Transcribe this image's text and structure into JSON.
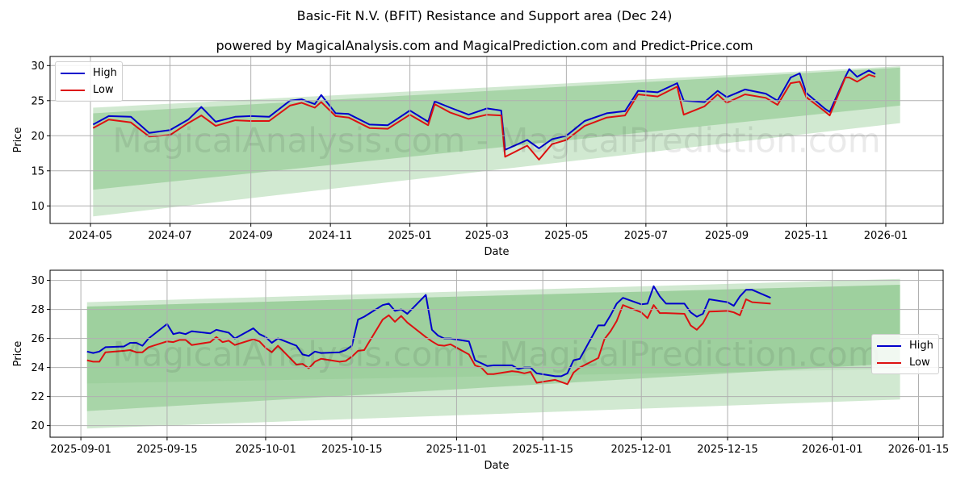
{
  "title": "Basic-Fit N.V. (BFIT) Resistance and Support area (Dec 24)",
  "subtitle": "powered by MagicalAnalysis.com and MagicalPrediction.com and Predict-Price.com",
  "watermark": "MagicalAnalysis.com - MagicalPrediction.com",
  "colors": {
    "high": "#0000cc",
    "low": "#dd1111",
    "band_dark": "#7cbf7c",
    "band_light": "#b5dcb5"
  },
  "chart_data": [
    {
      "type": "line",
      "title": "",
      "xlabel": "Date",
      "ylabel": "Price",
      "ylim": [
        7.5,
        31.3
      ],
      "yticks": [
        10,
        15,
        20,
        25,
        30
      ],
      "xticks": [
        "2024-05",
        "2024-07",
        "2024-09",
        "2024-11",
        "2025-01",
        "2025-03",
        "2025-05",
        "2025-07",
        "2025-09",
        "2025-11",
        "2026-01"
      ],
      "legend": {
        "position": "upper left",
        "entries": [
          "High",
          "Low"
        ]
      },
      "grid": true,
      "bands": {
        "x_start": "2024-05-03",
        "x_end": "2026-01-12",
        "outer": {
          "start": [
            8.5,
            24.0
          ],
          "end": [
            21.8,
            29.9
          ]
        },
        "inner": {
          "start": [
            12.3,
            23.2
          ],
          "end": [
            24.3,
            29.7
          ]
        }
      },
      "series": [
        {
          "name": "High",
          "x": [
            "2024-05-03",
            "2024-05-15",
            "2024-06-01",
            "2024-06-15",
            "2024-07-01",
            "2024-07-15",
            "2024-07-25",
            "2024-08-05",
            "2024-08-20",
            "2024-09-01",
            "2024-09-15",
            "2024-10-01",
            "2024-10-10",
            "2024-10-20",
            "2024-10-25",
            "2024-11-05",
            "2024-11-15",
            "2024-12-01",
            "2024-12-15",
            "2025-01-01",
            "2025-01-15",
            "2025-01-20",
            "2025-02-01",
            "2025-02-15",
            "2025-03-01",
            "2025-03-12",
            "2025-03-15",
            "2025-04-01",
            "2025-04-10",
            "2025-04-20",
            "2025-05-01",
            "2025-05-15",
            "2025-06-01",
            "2025-06-15",
            "2025-06-25",
            "2025-07-10",
            "2025-07-25",
            "2025-07-30",
            "2025-08-15",
            "2025-08-25",
            "2025-09-01",
            "2025-09-15",
            "2025-10-01",
            "2025-10-10",
            "2025-10-20",
            "2025-10-27",
            "2025-11-01",
            "2025-11-15",
            "2025-11-19",
            "2025-12-01",
            "2025-12-04",
            "2025-12-10",
            "2025-12-19",
            "2025-12-24"
          ],
          "values": [
            21.6,
            22.8,
            22.7,
            20.4,
            20.8,
            22.3,
            24.1,
            22.0,
            22.7,
            22.8,
            22.7,
            25.0,
            25.2,
            24.5,
            25.8,
            23.2,
            23.1,
            21.6,
            21.5,
            23.6,
            22.0,
            24.9,
            24.0,
            23.0,
            23.9,
            23.6,
            18.0,
            19.4,
            18.2,
            19.5,
            20.0,
            22.1,
            23.2,
            23.5,
            26.4,
            26.2,
            27.5,
            25.0,
            24.8,
            26.4,
            25.5,
            26.6,
            26.0,
            25.0,
            28.3,
            28.9,
            26.1,
            23.9,
            23.4,
            28.4,
            29.5,
            28.4,
            29.3,
            28.8
          ]
        },
        {
          "name": "Low",
          "x": [
            "2024-05-03",
            "2024-05-15",
            "2024-06-01",
            "2024-06-15",
            "2024-07-01",
            "2024-07-15",
            "2024-07-25",
            "2024-08-05",
            "2024-08-20",
            "2024-09-01",
            "2024-09-15",
            "2024-10-01",
            "2024-10-10",
            "2024-10-20",
            "2024-10-25",
            "2024-11-05",
            "2024-11-15",
            "2024-12-01",
            "2024-12-15",
            "2025-01-01",
            "2025-01-15",
            "2025-01-20",
            "2025-02-01",
            "2025-02-15",
            "2025-03-01",
            "2025-03-12",
            "2025-03-15",
            "2025-04-01",
            "2025-04-10",
            "2025-04-20",
            "2025-05-01",
            "2025-05-15",
            "2025-06-01",
            "2025-06-15",
            "2025-06-25",
            "2025-07-10",
            "2025-07-25",
            "2025-07-30",
            "2025-08-15",
            "2025-08-25",
            "2025-09-01",
            "2025-09-15",
            "2025-10-01",
            "2025-10-10",
            "2025-10-20",
            "2025-10-27",
            "2025-11-01",
            "2025-11-15",
            "2025-11-19",
            "2025-12-01",
            "2025-12-04",
            "2025-12-10",
            "2025-12-19",
            "2025-12-24"
          ],
          "values": [
            21.1,
            22.3,
            21.9,
            19.9,
            20.1,
            21.8,
            22.9,
            21.4,
            22.2,
            22.1,
            22.1,
            24.3,
            24.7,
            24.0,
            24.8,
            22.8,
            22.6,
            21.1,
            21.0,
            23.0,
            21.5,
            24.5,
            23.3,
            22.4,
            23.0,
            22.9,
            17.0,
            18.6,
            16.6,
            18.8,
            19.4,
            21.4,
            22.6,
            22.9,
            25.9,
            25.6,
            27.0,
            23.0,
            24.2,
            25.9,
            24.7,
            25.9,
            25.4,
            24.4,
            27.5,
            27.7,
            25.5,
            23.5,
            22.9,
            28.3,
            28.3,
            27.7,
            28.7,
            28.4
          ]
        }
      ]
    },
    {
      "type": "line",
      "title": "",
      "xlabel": "Date",
      "ylabel": "Price",
      "ylim": [
        19.2,
        30.7
      ],
      "yticks": [
        20,
        22,
        24,
        26,
        28,
        30
      ],
      "xticks": [
        "2025-09-01",
        "2025-09-15",
        "2025-10-01",
        "2025-10-15",
        "2025-11-01",
        "2025-11-15",
        "2025-12-01",
        "2025-12-15",
        "2026-01-01",
        "2026-01-15"
      ],
      "legend": {
        "position": "center right",
        "entries": [
          "High",
          "Low"
        ]
      },
      "grid": true,
      "bands": {
        "x_start": "2025-09-02",
        "x_end": "2026-01-12",
        "outer": {
          "start": [
            19.8,
            28.5
          ],
          "end": [
            21.8,
            30.1
          ]
        },
        "inner": {
          "start": [
            21.0,
            28.2
          ],
          "end": [
            24.3,
            29.7
          ]
        },
        "core": {
          "start": [
            22.9,
            28.2
          ],
          "end": [
            23.9,
            29.7
          ]
        }
      },
      "series": [
        {
          "name": "High",
          "x": [
            "2025-09-02",
            "2025-09-03",
            "2025-09-04",
            "2025-09-05",
            "2025-09-08",
            "2025-09-09",
            "2025-09-10",
            "2025-09-11",
            "2025-09-12",
            "2025-09-15",
            "2025-09-16",
            "2025-09-17",
            "2025-09-18",
            "2025-09-19",
            "2025-09-22",
            "2025-09-23",
            "2025-09-24",
            "2025-09-25",
            "2025-09-26",
            "2025-09-29",
            "2025-09-30",
            "2025-10-01",
            "2025-10-02",
            "2025-10-03",
            "2025-10-06",
            "2025-10-07",
            "2025-10-08",
            "2025-10-09",
            "2025-10-10",
            "2025-10-13",
            "2025-10-14",
            "2025-10-15",
            "2025-10-16",
            "2025-10-17",
            "2025-10-20",
            "2025-10-21",
            "2025-10-22",
            "2025-10-23",
            "2025-10-24",
            "2025-10-27",
            "2025-10-28",
            "2025-10-29",
            "2025-10-30",
            "2025-10-31",
            "2025-11-03",
            "2025-11-04",
            "2025-11-05",
            "2025-11-06",
            "2025-11-07",
            "2025-11-10",
            "2025-11-11",
            "2025-11-12",
            "2025-11-13",
            "2025-11-14",
            "2025-11-17",
            "2025-11-18",
            "2025-11-19",
            "2025-11-20",
            "2025-11-21",
            "2025-11-24",
            "2025-11-25",
            "2025-11-26",
            "2025-11-27",
            "2025-11-28",
            "2025-12-01",
            "2025-12-02",
            "2025-12-03",
            "2025-12-04",
            "2025-12-05",
            "2025-12-08",
            "2025-12-09",
            "2025-12-10",
            "2025-12-11",
            "2025-12-12",
            "2025-12-15",
            "2025-12-16",
            "2025-12-17",
            "2025-12-18",
            "2025-12-19",
            "2025-12-22"
          ],
          "values": [
            25.1,
            25.0,
            25.1,
            25.4,
            25.45,
            25.7,
            25.7,
            25.5,
            26.0,
            27.0,
            26.3,
            26.4,
            26.3,
            26.5,
            26.35,
            26.6,
            26.5,
            26.4,
            26.0,
            26.7,
            26.3,
            26.1,
            25.7,
            26.0,
            25.5,
            24.9,
            24.8,
            25.1,
            25.0,
            25.05,
            25.2,
            25.5,
            27.3,
            27.5,
            28.3,
            28.4,
            27.9,
            28.0,
            27.7,
            29.0,
            26.6,
            26.2,
            26.0,
            26.0,
            25.8,
            24.5,
            24.3,
            24.1,
            24.15,
            24.15,
            23.9,
            24.0,
            24.0,
            23.6,
            23.4,
            23.4,
            23.6,
            24.5,
            24.6,
            26.9,
            26.9,
            27.6,
            28.4,
            28.8,
            28.35,
            28.4,
            29.6,
            28.9,
            28.4,
            28.4,
            27.8,
            27.5,
            27.7,
            28.7,
            28.5,
            28.25,
            28.9,
            29.35,
            29.35,
            28.8
          ]
        },
        {
          "name": "Low",
          "x": [
            "2025-09-02",
            "2025-09-03",
            "2025-09-04",
            "2025-09-05",
            "2025-09-08",
            "2025-09-09",
            "2025-09-10",
            "2025-09-11",
            "2025-09-12",
            "2025-09-15",
            "2025-09-16",
            "2025-09-17",
            "2025-09-18",
            "2025-09-19",
            "2025-09-22",
            "2025-09-23",
            "2025-09-24",
            "2025-09-25",
            "2025-09-26",
            "2025-09-29",
            "2025-09-30",
            "2025-10-01",
            "2025-10-02",
            "2025-10-03",
            "2025-10-06",
            "2025-10-07",
            "2025-10-08",
            "2025-10-09",
            "2025-10-10",
            "2025-10-13",
            "2025-10-14",
            "2025-10-15",
            "2025-10-16",
            "2025-10-17",
            "2025-10-20",
            "2025-10-21",
            "2025-10-22",
            "2025-10-23",
            "2025-10-24",
            "2025-10-27",
            "2025-10-28",
            "2025-10-29",
            "2025-10-30",
            "2025-10-31",
            "2025-11-03",
            "2025-11-04",
            "2025-11-05",
            "2025-11-06",
            "2025-11-07",
            "2025-11-10",
            "2025-11-11",
            "2025-11-12",
            "2025-11-13",
            "2025-11-14",
            "2025-11-17",
            "2025-11-18",
            "2025-11-19",
            "2025-11-20",
            "2025-11-21",
            "2025-11-24",
            "2025-11-25",
            "2025-11-26",
            "2025-11-27",
            "2025-11-28",
            "2025-12-01",
            "2025-12-02",
            "2025-12-03",
            "2025-12-04",
            "2025-12-05",
            "2025-12-08",
            "2025-12-09",
            "2025-12-10",
            "2025-12-11",
            "2025-12-12",
            "2025-12-15",
            "2025-12-16",
            "2025-12-17",
            "2025-12-18",
            "2025-12-19",
            "2025-12-22"
          ],
          "values": [
            24.5,
            24.4,
            24.4,
            25.05,
            25.15,
            25.2,
            25.05,
            25.05,
            25.4,
            25.8,
            25.75,
            25.9,
            25.9,
            25.55,
            25.75,
            26.1,
            25.75,
            25.85,
            25.55,
            25.95,
            25.8,
            25.35,
            25.05,
            25.5,
            24.2,
            24.25,
            23.95,
            24.4,
            24.6,
            24.4,
            24.45,
            24.75,
            25.15,
            25.2,
            27.3,
            27.6,
            27.15,
            27.55,
            27.1,
            26.1,
            25.8,
            25.55,
            25.5,
            25.6,
            24.9,
            24.15,
            24.0,
            23.55,
            23.55,
            23.75,
            23.7,
            23.6,
            23.7,
            22.95,
            23.15,
            23.0,
            22.85,
            23.65,
            24.0,
            24.65,
            25.95,
            26.5,
            27.2,
            28.3,
            27.8,
            27.4,
            28.3,
            27.75,
            27.75,
            27.7,
            26.9,
            26.6,
            27.05,
            27.85,
            27.9,
            27.8,
            27.6,
            28.7,
            28.5,
            28.4
          ]
        }
      ]
    }
  ],
  "legend_top": {
    "high_label": "High",
    "low_label": "Low"
  },
  "legend_bottom": {
    "high_label": "High",
    "low_label": "Low"
  }
}
